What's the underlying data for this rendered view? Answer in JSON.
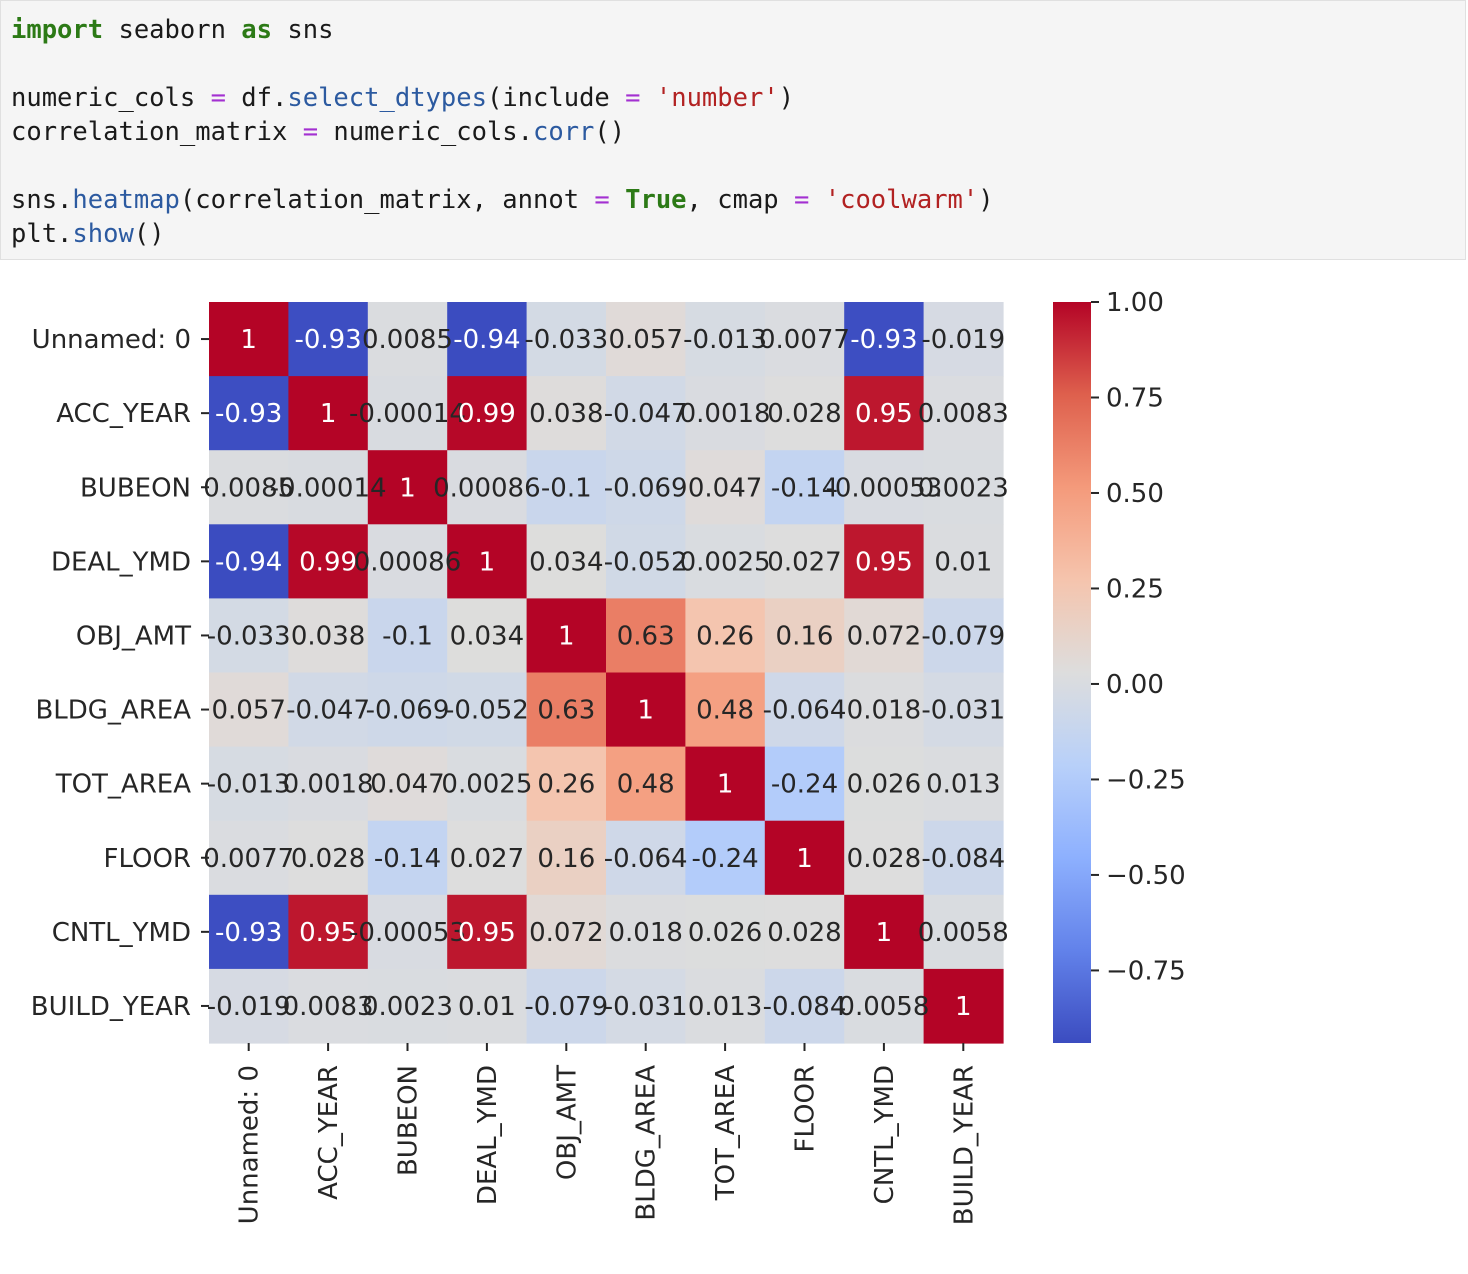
{
  "code": {
    "line1": {
      "kw1": "import",
      "t1": " seaborn ",
      "kw2": "as",
      "t2": " sns"
    },
    "line3": {
      "t1": "numeric_cols ",
      "op": "=",
      "t2": " df.",
      "fn": "select_dtypes",
      "t3": "(include ",
      "op2": "=",
      "t4": " ",
      "str": "'number'",
      "t5": ")"
    },
    "line4": {
      "t1": "correlation_matrix ",
      "op": "=",
      "t2": " numeric_cols.",
      "fn": "corr",
      "t3": "()"
    },
    "line6": {
      "t1": "sns.",
      "fn": "heatmap",
      "t2": "(correlation_matrix, annot ",
      "op": "=",
      "t3": " ",
      "kw": "True",
      "t4": ", cmap ",
      "op2": "=",
      "t5": " ",
      "str": "'coolwarm'",
      "t6": ")"
    },
    "line7": {
      "t1": "plt.",
      "fn": "show",
      "t2": "()"
    }
  },
  "chart_data": {
    "type": "heatmap",
    "cmap": "coolwarm",
    "labels": [
      "Unnamed: 0",
      "ACC_YEAR",
      "BUBEON",
      "DEAL_YMD",
      "OBJ_AMT",
      "BLDG_AREA",
      "TOT_AREA",
      "FLOOR",
      "CNTL_YMD",
      "BUILD_YEAR"
    ],
    "values": [
      [
        1,
        -0.93,
        0.0085,
        -0.94,
        -0.033,
        0.057,
        -0.013,
        0.0077,
        -0.93,
        -0.019
      ],
      [
        -0.93,
        1,
        -0.00014,
        0.99,
        0.038,
        -0.047,
        0.0018,
        0.028,
        0.95,
        0.0083
      ],
      [
        0.0085,
        -0.00014,
        1,
        0.00086,
        -0.1,
        -0.069,
        0.047,
        -0.14,
        -0.00053,
        0.0023
      ],
      [
        -0.94,
        0.99,
        0.00086,
        1,
        0.034,
        -0.052,
        0.0025,
        0.027,
        0.95,
        0.01
      ],
      [
        -0.033,
        0.038,
        -0.1,
        0.034,
        1,
        0.63,
        0.26,
        0.16,
        0.072,
        -0.079
      ],
      [
        0.057,
        -0.047,
        -0.069,
        -0.052,
        0.63,
        1,
        0.48,
        -0.064,
        0.018,
        -0.031
      ],
      [
        -0.013,
        0.0018,
        0.047,
        0.0025,
        0.26,
        0.48,
        1,
        -0.24,
        0.026,
        0.013
      ],
      [
        0.0077,
        0.028,
        -0.14,
        0.027,
        0.16,
        -0.064,
        -0.24,
        1,
        0.028,
        -0.084
      ],
      [
        -0.93,
        0.95,
        -0.00053,
        0.95,
        0.072,
        0.018,
        0.026,
        0.028,
        1,
        0.0058
      ],
      [
        -0.019,
        0.0083,
        0.0023,
        0.01,
        -0.079,
        -0.031,
        0.013,
        -0.084,
        0.0058,
        1
      ]
    ],
    "annotations": [
      [
        "1",
        "-0.93",
        "0.0085",
        "-0.94",
        "-0.033",
        "0.057",
        "-0.013",
        "0.0077",
        "-0.93",
        "-0.019"
      ],
      [
        "-0.93",
        "1",
        "-0.00014",
        "0.99",
        "0.038",
        "-0.047",
        "0.0018",
        "0.028",
        "0.95",
        "0.0083"
      ],
      [
        "0.0085",
        "-0.00014",
        "1",
        "0.00086",
        "-0.1",
        "-0.069",
        "0.047",
        "-0.14",
        "-0.00053",
        "0.0023"
      ],
      [
        "-0.94",
        "0.99",
        "0.00086",
        "1",
        "0.034",
        "-0.052",
        "0.0025",
        "0.027",
        "0.95",
        "0.01"
      ],
      [
        "-0.033",
        "0.038",
        "-0.1",
        "0.034",
        "1",
        "0.63",
        "0.26",
        "0.16",
        "0.072",
        "-0.079"
      ],
      [
        "0.057",
        "-0.047",
        "-0.069",
        "-0.052",
        "0.63",
        "1",
        "0.48",
        "-0.064",
        "0.018",
        "-0.031"
      ],
      [
        "-0.013",
        "0.0018",
        "0.047",
        "0.0025",
        "0.26",
        "0.48",
        "1",
        "-0.24",
        "0.026",
        "0.013"
      ],
      [
        "0.0077",
        "0.028",
        "-0.14",
        "0.027",
        "0.16",
        "-0.064",
        "-0.24",
        "1",
        "0.028",
        "-0.084"
      ],
      [
        "-0.93",
        "0.95",
        "-0.00053",
        "0.95",
        "0.072",
        "0.018",
        "0.026",
        "0.028",
        "1",
        "0.0058"
      ],
      [
        "-0.019",
        "0.0083",
        "0.0023",
        "0.01",
        "-0.079",
        "-0.031",
        "0.013",
        "-0.084",
        "0.0058",
        "1"
      ]
    ],
    "colorbar": {
      "range": [
        -0.94,
        1.0
      ],
      "ticks": [
        1.0,
        0.75,
        0.5,
        0.25,
        0.0,
        -0.25,
        -0.5,
        -0.75
      ],
      "tick_labels": [
        "1.00",
        "0.75",
        "0.50",
        "0.25",
        "0.00",
        "−0.25",
        "−0.50",
        "−0.75"
      ]
    }
  }
}
